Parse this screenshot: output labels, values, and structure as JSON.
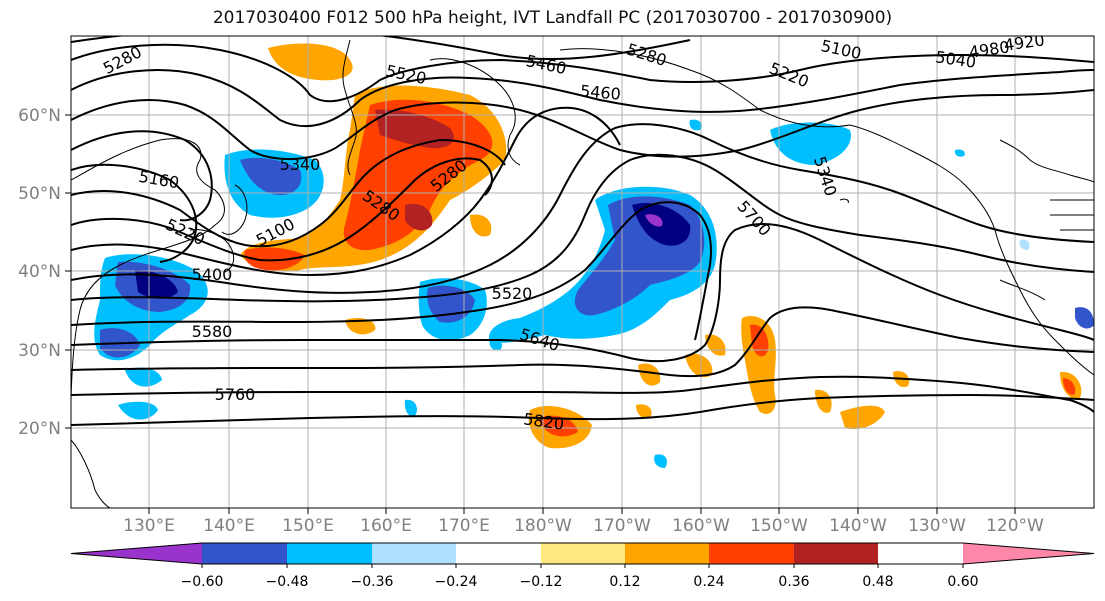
{
  "title": "2017030400 F012 500 hPa height, IVT Landfall PC (2017030700 - 2017030900)",
  "lat_labels": [
    "60°N",
    "50°N",
    "40°N",
    "30°N",
    "20°N"
  ],
  "lon_labels": [
    "130°E",
    "140°E",
    "150°E",
    "160°E",
    "170°E",
    "180°W",
    "170°W",
    "160°W",
    "150°W",
    "140°W",
    "130°W",
    "120°W"
  ],
  "contour_labels": [
    "5280",
    "5520",
    "5460",
    "5280",
    "5100",
    "5220",
    "4980",
    "4920",
    "5040",
    "5460",
    "5340",
    "5160",
    "5280",
    "5280",
    "5220",
    "5100",
    "5400",
    "5700",
    "5340",
    "5520",
    "5580",
    "5640",
    "5760",
    "5820"
  ],
  "colorbar": {
    "colors": [
      "#9933cc",
      "#000080",
      "#3355cc",
      "#00bfff",
      "#b0e0ff",
      "#ffffff",
      "#ffe97f",
      "#ffa500",
      "#ff4000",
      "#b22222",
      "#ff88aa"
    ],
    "tick_labels": [
      "−0.60",
      "−0.48",
      "−0.36",
      "−0.24",
      "−0.12",
      "0.12",
      "0.24",
      "0.36",
      "0.48",
      "0.60"
    ]
  }
}
